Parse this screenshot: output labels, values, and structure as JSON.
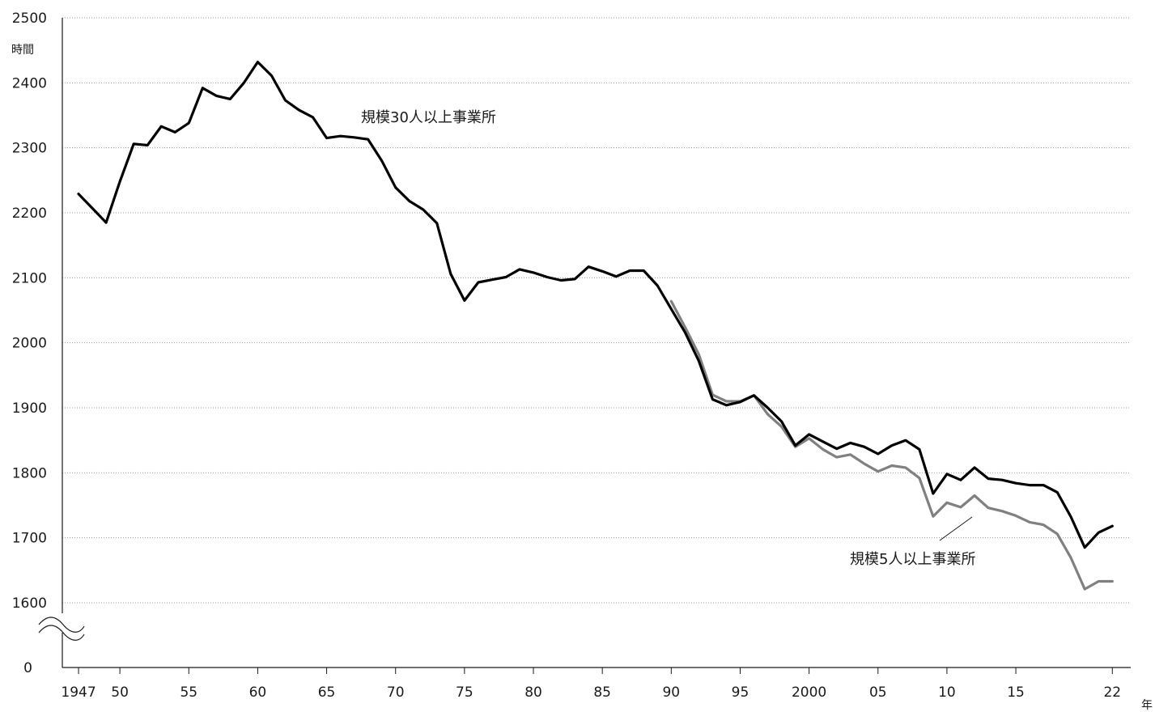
{
  "chart_data": {
    "type": "line",
    "ylabel": "時間",
    "xlabel": "年",
    "ylim": [
      1600,
      2500
    ],
    "y_axis_break": true,
    "y_axis_bottom_label": "0",
    "grid": "horizontal-dotted",
    "xlim": [
      1946,
      2022
    ],
    "y_ticks": [
      "2500",
      "2400",
      "2300",
      "2200",
      "2100",
      "2000",
      "1900",
      "1800",
      "1700",
      "1600"
    ],
    "y_tick_values": [
      2500,
      2400,
      2300,
      2200,
      2100,
      2000,
      1900,
      1800,
      1700,
      1600
    ],
    "x_ticks": [
      {
        "year": 1947,
        "label": "1947"
      },
      {
        "year": 1950,
        "label": "50"
      },
      {
        "year": 1955,
        "label": "55"
      },
      {
        "year": 1960,
        "label": "60"
      },
      {
        "year": 1965,
        "label": "65"
      },
      {
        "year": 1970,
        "label": "70"
      },
      {
        "year": 1975,
        "label": "75"
      },
      {
        "year": 1980,
        "label": "80"
      },
      {
        "year": 1985,
        "label": "85"
      },
      {
        "year": 1990,
        "label": "90"
      },
      {
        "year": 1995,
        "label": "95"
      },
      {
        "year": 2000,
        "label": "2000"
      },
      {
        "year": 2005,
        "label": "05"
      },
      {
        "year": 2010,
        "label": "10"
      },
      {
        "year": 2015,
        "label": "15"
      },
      {
        "year": 2022,
        "label": "22"
      }
    ],
    "series": [
      {
        "name": "規模30人以上事業所",
        "color": "#000000",
        "points": [
          [
            1947,
            2229
          ],
          [
            1948,
            2207
          ],
          [
            1949,
            2185
          ],
          [
            1950,
            2248
          ],
          [
            1951,
            2306
          ],
          [
            1952,
            2304
          ],
          [
            1953,
            2333
          ],
          [
            1954,
            2324
          ],
          [
            1955,
            2338
          ],
          [
            1956,
            2392
          ],
          [
            1957,
            2380
          ],
          [
            1958,
            2375
          ],
          [
            1959,
            2400
          ],
          [
            1960,
            2432
          ],
          [
            1961,
            2411
          ],
          [
            1962,
            2373
          ],
          [
            1963,
            2358
          ],
          [
            1964,
            2347
          ],
          [
            1965,
            2315
          ],
          [
            1966,
            2318
          ],
          [
            1967,
            2316
          ],
          [
            1968,
            2313
          ],
          [
            1969,
            2280
          ],
          [
            1970,
            2239
          ],
          [
            1971,
            2218
          ],
          [
            1972,
            2205
          ],
          [
            1973,
            2184
          ],
          [
            1974,
            2106
          ],
          [
            1975,
            2065
          ],
          [
            1976,
            2093
          ],
          [
            1977,
            2097
          ],
          [
            1978,
            2101
          ],
          [
            1979,
            2113
          ],
          [
            1980,
            2108
          ],
          [
            1981,
            2101
          ],
          [
            1982,
            2096
          ],
          [
            1983,
            2098
          ],
          [
            1984,
            2117
          ],
          [
            1985,
            2110
          ],
          [
            1986,
            2102
          ],
          [
            1987,
            2111
          ],
          [
            1988,
            2111
          ],
          [
            1989,
            2088
          ],
          [
            1990,
            2052
          ],
          [
            1991,
            2016
          ],
          [
            1992,
            1972
          ],
          [
            1993,
            1913
          ],
          [
            1994,
            1904
          ],
          [
            1995,
            1909
          ],
          [
            1996,
            1919
          ],
          [
            1997,
            1900
          ],
          [
            1998,
            1879
          ],
          [
            1999,
            1842
          ],
          [
            2000,
            1859
          ],
          [
            2001,
            1848
          ],
          [
            2002,
            1837
          ],
          [
            2003,
            1846
          ],
          [
            2004,
            1840
          ],
          [
            2005,
            1829
          ],
          [
            2006,
            1842
          ],
          [
            2007,
            1850
          ],
          [
            2008,
            1836
          ],
          [
            2009,
            1768
          ],
          [
            2010,
            1798
          ],
          [
            2011,
            1789
          ],
          [
            2012,
            1808
          ],
          [
            2013,
            1791
          ],
          [
            2014,
            1789
          ],
          [
            2015,
            1784
          ],
          [
            2016,
            1781
          ],
          [
            2017,
            1781
          ],
          [
            2018,
            1770
          ],
          [
            2019,
            1732
          ],
          [
            2020,
            1685
          ],
          [
            2021,
            1708
          ],
          [
            2022,
            1718
          ]
        ]
      },
      {
        "name": "規模5人以上事業所",
        "color": "#808080",
        "points": [
          [
            1990,
            2064
          ],
          [
            1991,
            2024
          ],
          [
            1992,
            1982
          ],
          [
            1993,
            1920
          ],
          [
            1994,
            1910
          ],
          [
            1995,
            1910
          ],
          [
            1996,
            1919
          ],
          [
            1997,
            1890
          ],
          [
            1998,
            1871
          ],
          [
            1999,
            1840
          ],
          [
            2000,
            1853
          ],
          [
            2001,
            1836
          ],
          [
            2002,
            1824
          ],
          [
            2003,
            1828
          ],
          [
            2004,
            1814
          ],
          [
            2005,
            1802
          ],
          [
            2006,
            1811
          ],
          [
            2007,
            1808
          ],
          [
            2008,
            1792
          ],
          [
            2009,
            1733
          ],
          [
            2010,
            1754
          ],
          [
            2011,
            1747
          ],
          [
            2012,
            1765
          ],
          [
            2013,
            1746
          ],
          [
            2014,
            1741
          ],
          [
            2015,
            1734
          ],
          [
            2016,
            1724
          ],
          [
            2017,
            1720
          ],
          [
            2018,
            1706
          ],
          [
            2019,
            1669
          ],
          [
            2020,
            1621
          ],
          [
            2021,
            1633
          ],
          [
            2022,
            1633
          ]
        ]
      }
    ],
    "annotations": [
      {
        "text": "規模30人以上事業所",
        "series": 0
      },
      {
        "text": "規模5人以上事業所",
        "series": 1
      }
    ]
  }
}
